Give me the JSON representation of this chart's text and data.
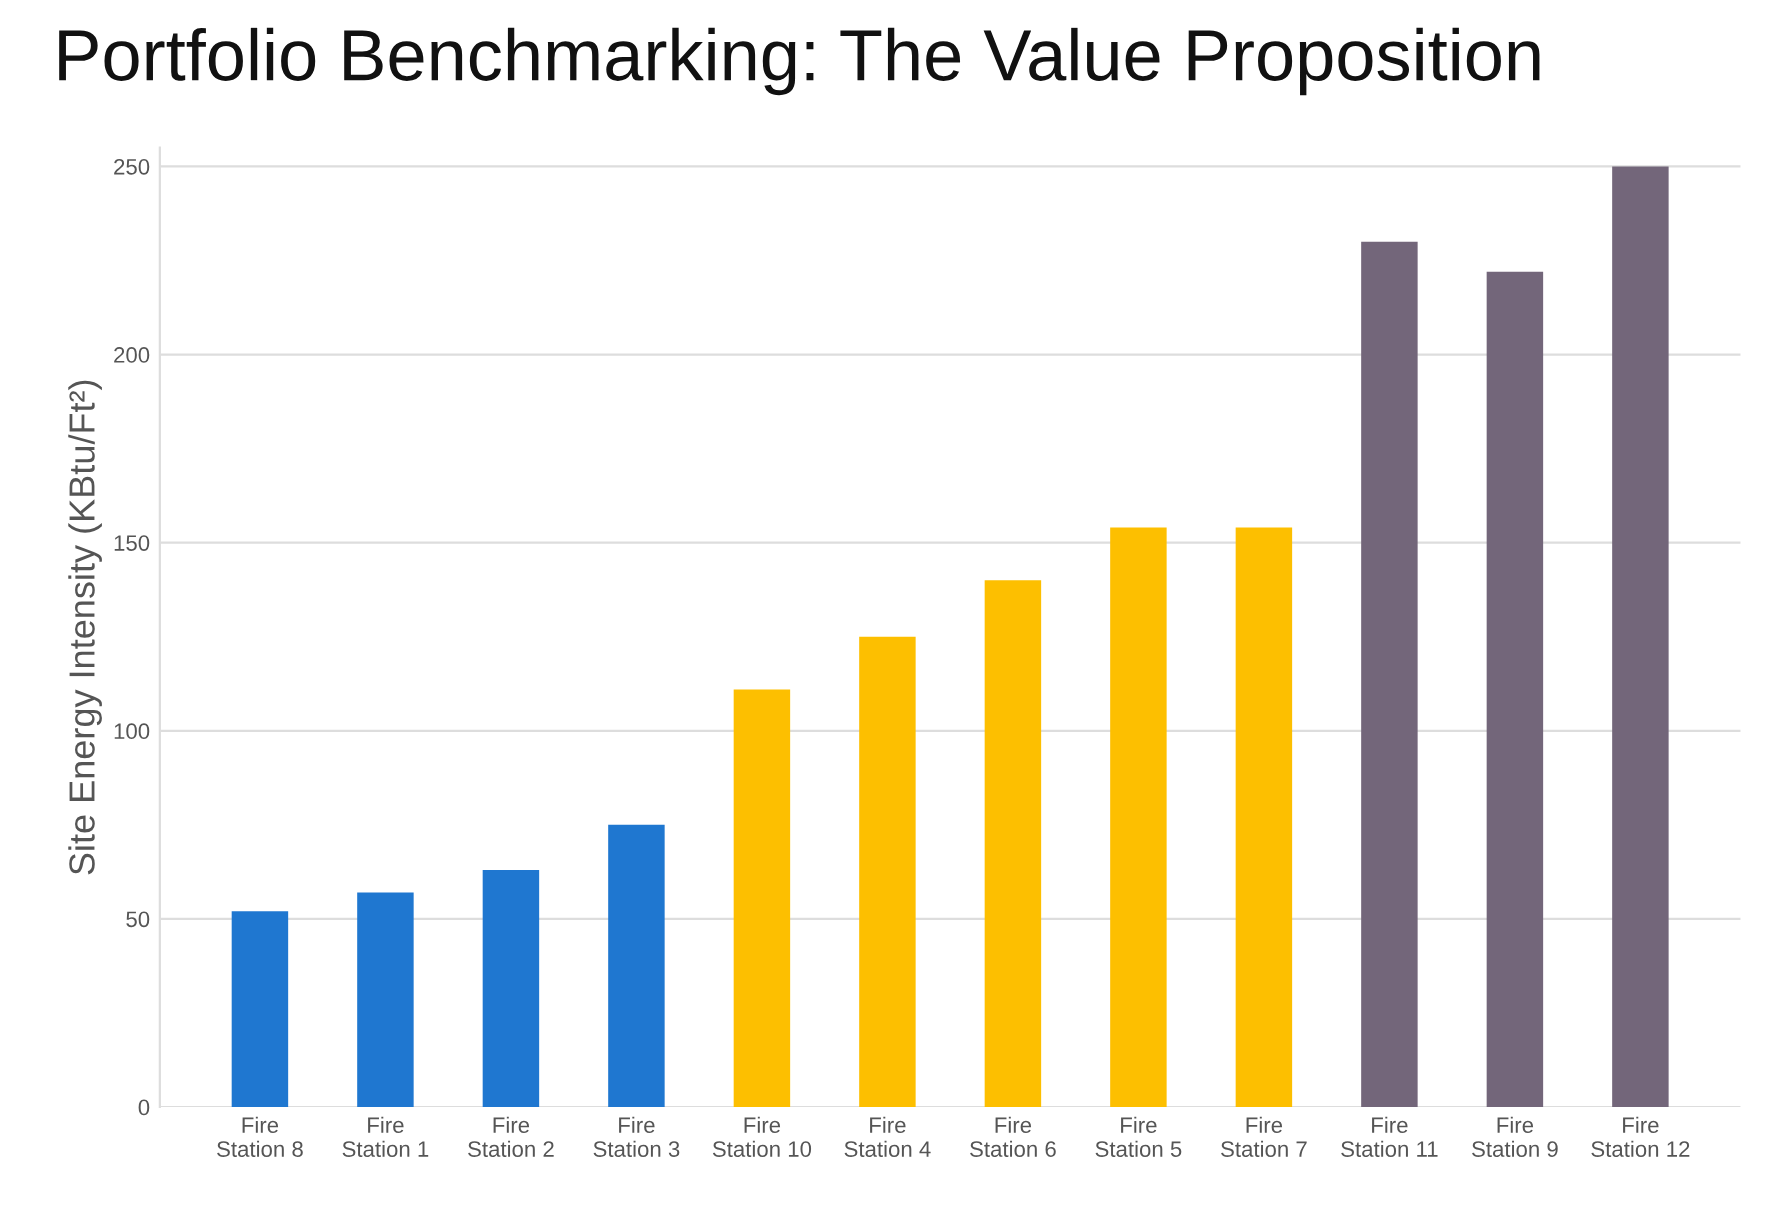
{
  "chart_data": {
    "type": "bar",
    "title": "Portfolio Benchmarking: The Value Proposition",
    "ylabel": "Site Energy Intensity (KBtu/Ft²)",
    "categories": [
      "Fire\nStation 8",
      "Fire\nStation 1",
      "Fire\nStation 2",
      "Fire\nStation 3",
      "Fire\nStation 10",
      "Fire\nStation 4",
      "Fire\nStation 6",
      "Fire\nStation 5",
      "Fire\nStation 7",
      "Fire\nStation 11",
      "Fire\nStation 9",
      "Fire\nStation 12"
    ],
    "values": [
      52,
      57,
      63,
      75,
      111,
      125,
      140,
      154,
      154,
      230,
      222,
      250
    ],
    "colors": [
      "#1f77d0",
      "#1f77d0",
      "#1f77d0",
      "#1f77d0",
      "#fdbf00",
      "#fdbf00",
      "#fdbf00",
      "#fdbf00",
      "#fdbf00",
      "#73667a",
      "#73667a",
      "#73667a"
    ],
    "ylim": [
      0,
      255
    ],
    "yticks": [
      0,
      50,
      100,
      150,
      200,
      250
    ],
    "grid": "y"
  }
}
